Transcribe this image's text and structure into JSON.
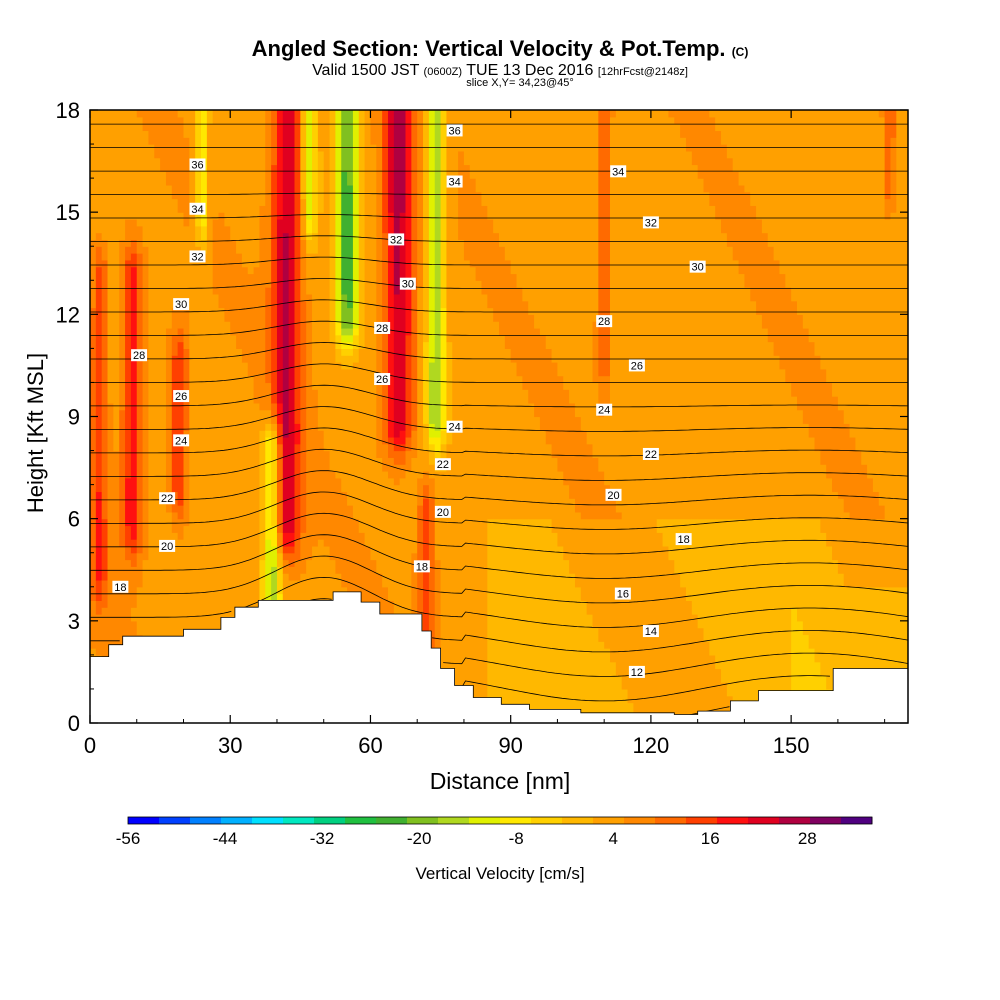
{
  "header": {
    "title": "Angled Section: Vertical Velocity & Pot.Temp.",
    "title_unit": "(C)",
    "valid_prefix": "Valid 1500 JST",
    "valid_utc": "(0600Z)",
    "valid_date": "TUE 13 Dec 2016",
    "forecast": "[12hrFcst@2148z]",
    "slice": "slice X,Y= 34,23@45°"
  },
  "chart_data": {
    "type": "heatmap",
    "xlabel": "Distance [nm]",
    "ylabel": "Height [Kft MSL]",
    "xlim": [
      0,
      175
    ],
    "ylim": [
      0,
      18
    ],
    "xticks": [
      0,
      30,
      60,
      90,
      120,
      150
    ],
    "yticks": [
      0,
      3,
      6,
      9,
      12,
      15,
      18
    ],
    "colorbar": {
      "title": "Vertical Velocity [cm/s]",
      "tick_labels": [
        "-56",
        "-44",
        "-32",
        "-20",
        "-8",
        "4",
        "16",
        "28"
      ],
      "tick_values": [
        -56,
        -44,
        -32,
        -20,
        -8,
        4,
        16,
        28
      ],
      "range": [
        -56,
        36
      ],
      "colors": [
        "#0000ff",
        "#0040ff",
        "#0080ff",
        "#00b0ff",
        "#00e0ff",
        "#00e8c0",
        "#00d080",
        "#20c040",
        "#40b030",
        "#80c020",
        "#b0d820",
        "#e0f000",
        "#ffe800",
        "#ffd000",
        "#ffb800",
        "#ffa000",
        "#ff8800",
        "#ff6a00",
        "#ff4000",
        "#ff1010",
        "#e00020",
        "#b00040",
        "#800060",
        "#500080"
      ]
    },
    "terrain_kft": [
      [
        0,
        1.95
      ],
      [
        4,
        1.95
      ],
      [
        4,
        2.3
      ],
      [
        7,
        2.3
      ],
      [
        7,
        2.55
      ],
      [
        20,
        2.55
      ],
      [
        20,
        2.75
      ],
      [
        28,
        2.75
      ],
      [
        28,
        3.1
      ],
      [
        31,
        3.1
      ],
      [
        31,
        3.4
      ],
      [
        36,
        3.4
      ],
      [
        36,
        3.6
      ],
      [
        52,
        3.6
      ],
      [
        52,
        3.85
      ],
      [
        58,
        3.85
      ],
      [
        58,
        3.55
      ],
      [
        62,
        3.55
      ],
      [
        62,
        3.2
      ],
      [
        71,
        3.2
      ],
      [
        71,
        2.7
      ],
      [
        73,
        2.7
      ],
      [
        73,
        2.2
      ],
      [
        75,
        2.2
      ],
      [
        75,
        1.6
      ],
      [
        78,
        1.6
      ],
      [
        78,
        1.1
      ],
      [
        82,
        1.1
      ],
      [
        82,
        0.75
      ],
      [
        88,
        0.75
      ],
      [
        88,
        0.55
      ],
      [
        94,
        0.55
      ],
      [
        94,
        0.4
      ],
      [
        105,
        0.4
      ],
      [
        105,
        0.3
      ],
      [
        125,
        0.3
      ],
      [
        125,
        0.25
      ],
      [
        130,
        0.25
      ],
      [
        130,
        0.35
      ],
      [
        137,
        0.35
      ],
      [
        137,
        0.65
      ],
      [
        143,
        0.65
      ],
      [
        143,
        0.95
      ],
      [
        159,
        0.95
      ],
      [
        159,
        1.6
      ],
      [
        175,
        1.6
      ]
    ],
    "updraft_cores": [
      {
        "x": 2,
        "y_bottom": 4.5,
        "y_top": 13,
        "w": 0.55
      },
      {
        "x": 9,
        "y_bottom": 6,
        "y_top": 13,
        "w": 0.7
      },
      {
        "x": 19,
        "y_bottom": 7,
        "y_top": 10.5,
        "w": 0.6
      },
      {
        "x": 42,
        "y_bottom": 6,
        "y_top": 18,
        "w": 0.95
      },
      {
        "x": 66,
        "y_bottom": 9,
        "y_top": 18,
        "w": 1.0
      },
      {
        "x": 72,
        "y_bottom": 3,
        "y_top": 6,
        "w": 0.55
      },
      {
        "x": 110,
        "y_bottom": 11,
        "y_top": 18,
        "w": 0.45
      },
      {
        "x": 171,
        "y_bottom": 16,
        "y_top": 18,
        "w": 0.4
      }
    ],
    "downdraft_cores": [
      {
        "x": 24,
        "y_bottom": 15,
        "y_top": 18,
        "w": 0.55
      },
      {
        "x": 39,
        "y_bottom": 3.8,
        "y_top": 8,
        "w": 0.8
      },
      {
        "x": 47,
        "y_bottom": 15,
        "y_top": 18,
        "w": 0.6
      },
      {
        "x": 55,
        "y_bottom": 12,
        "y_top": 18,
        "w": 1.0
      },
      {
        "x": 74,
        "y_bottom": 9,
        "y_top": 18,
        "w": 0.8
      }
    ],
    "contour_labels": [
      {
        "text": "36",
        "x": 23,
        "y": 16.4
      },
      {
        "text": "34",
        "x": 23,
        "y": 15.1
      },
      {
        "text": "32",
        "x": 23,
        "y": 13.7
      },
      {
        "text": "30",
        "x": 19.5,
        "y": 12.3
      },
      {
        "text": "28",
        "x": 10.5,
        "y": 10.8
      },
      {
        "text": "26",
        "x": 19.5,
        "y": 9.6
      },
      {
        "text": "24",
        "x": 19.5,
        "y": 8.3
      },
      {
        "text": "22",
        "x": 16.5,
        "y": 6.6
      },
      {
        "text": "20",
        "x": 16.5,
        "y": 5.2
      },
      {
        "text": "18",
        "x": 6.5,
        "y": 4.0
      },
      {
        "text": "36",
        "x": 78,
        "y": 17.4
      },
      {
        "text": "34",
        "x": 78,
        "y": 15.9
      },
      {
        "text": "32",
        "x": 65.5,
        "y": 14.2
      },
      {
        "text": "30",
        "x": 68,
        "y": 12.9
      },
      {
        "text": "28",
        "x": 62.5,
        "y": 11.6
      },
      {
        "text": "26",
        "x": 62.5,
        "y": 10.1
      },
      {
        "text": "24",
        "x": 78,
        "y": 8.7
      },
      {
        "text": "22",
        "x": 75.5,
        "y": 7.6
      },
      {
        "text": "20",
        "x": 75.5,
        "y": 6.2
      },
      {
        "text": "18",
        "x": 71,
        "y": 4.6
      },
      {
        "text": "34",
        "x": 113,
        "y": 16.2
      },
      {
        "text": "32",
        "x": 120,
        "y": 14.7
      },
      {
        "text": "30",
        "x": 130,
        "y": 13.4
      },
      {
        "text": "28",
        "x": 110,
        "y": 11.8
      },
      {
        "text": "26",
        "x": 117,
        "y": 10.5
      },
      {
        "text": "24",
        "x": 110,
        "y": 9.2
      },
      {
        "text": "22",
        "x": 120,
        "y": 7.9
      },
      {
        "text": "20",
        "x": 112,
        "y": 6.7
      },
      {
        "text": "18",
        "x": 127,
        "y": 5.4
      },
      {
        "text": "16",
        "x": 114,
        "y": 3.8
      },
      {
        "text": "14",
        "x": 120,
        "y": 2.7
      },
      {
        "text": "12",
        "x": 117,
        "y": 1.5
      }
    ]
  }
}
